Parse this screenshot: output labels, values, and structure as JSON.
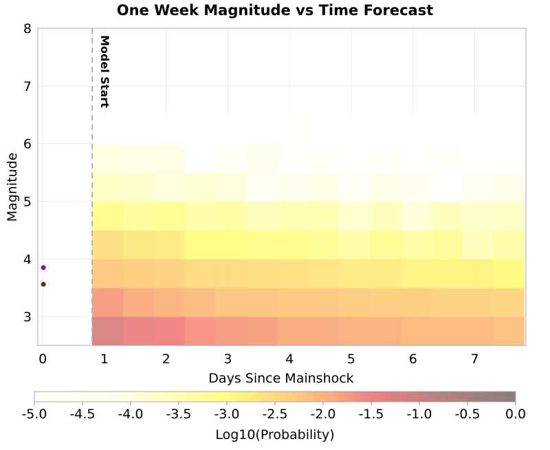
{
  "chart_data": {
    "type": "heatmap",
    "title": "One Week Magnitude vs Time Forecast",
    "xlabel": "Days Since Mainshock",
    "ylabel": "Magnitude",
    "xlim": [
      -0.08,
      7.83
    ],
    "ylim": [
      2.5,
      8
    ],
    "x_ticks": [
      "0",
      "1",
      "2",
      "3",
      "4",
      "5",
      "6",
      "7"
    ],
    "y_ticks": [
      "3",
      "4",
      "5",
      "6",
      "7",
      "8"
    ],
    "grid": true,
    "x_bin_edges": [
      0.8,
      1.3,
      1.8,
      2.3,
      2.8,
      3.3,
      3.8,
      4.3,
      4.8,
      5.3,
      5.8,
      6.3,
      6.8,
      7.3,
      7.8
    ],
    "y_bin_edges": [
      2.5,
      3.0,
      3.5,
      4.0,
      4.5,
      5.0,
      5.5,
      6.0,
      6.5
    ],
    "z": [
      [
        -1.2,
        -1.4,
        -1.5,
        -1.65,
        -1.75,
        -1.8,
        -1.9,
        -1.9,
        -1.95,
        -1.95,
        -2.05,
        -2.05,
        -2.05,
        -2.15
      ],
      [
        -1.75,
        -1.9,
        -2.0,
        -2.1,
        -2.2,
        -2.2,
        -2.25,
        -2.25,
        -2.3,
        -2.35,
        -2.35,
        -2.4,
        -2.4,
        -2.45
      ],
      [
        -2.25,
        -2.35,
        -2.4,
        -2.5,
        -2.5,
        -2.55,
        -2.6,
        -2.65,
        -2.75,
        -2.75,
        -2.85,
        -2.85,
        -2.85,
        -2.95
      ],
      [
        -2.55,
        -2.7,
        -2.75,
        -3.0,
        -3.0,
        -3.1,
        -3.1,
        -3.2,
        -3.4,
        -3.2,
        -3.35,
        -3.25,
        -3.6,
        -3.4
      ],
      [
        -3.1,
        -3.25,
        -3.2,
        -3.4,
        -3.35,
        -3.6,
        -3.5,
        -3.5,
        -3.8,
        -3.6,
        -3.9,
        -3.6,
        -3.75,
        -3.7
      ],
      [
        -3.7,
        -3.75,
        -3.95,
        -3.85,
        -3.9,
        -4.6,
        -4.4,
        -4.2,
        -4.7,
        -4.3,
        -4.4,
        -5.0,
        -4.6,
        -4.3
      ],
      [
        -4.0,
        -4.15,
        -4.1,
        -5.0,
        -4.7,
        -4.4,
        -4.9,
        -4.8,
        -5.0,
        -4.8,
        -5.0,
        -4.8,
        -5.0,
        -5.0
      ],
      [
        -5.0,
        -5.0,
        -5.0,
        -5.0,
        -5.0,
        -5.0,
        -4.85,
        -5.0,
        -5.0,
        -5.0,
        -5.0,
        -5.0,
        -5.0,
        -5.0
      ]
    ],
    "points": [
      {
        "x": 0.01,
        "y": 3.85,
        "color": "#a000a0"
      },
      {
        "x": 0.01,
        "y": 3.56,
        "color": "#5a3210"
      }
    ],
    "annotation": {
      "x": 0.8,
      "label": "Model Start"
    },
    "colorbar": {
      "label": "Log10(Probability)",
      "range": [
        -5.0,
        0.0
      ],
      "ticks": [
        "-5.0",
        "-4.5",
        "-4.0",
        "-3.5",
        "-3.0",
        "-2.5",
        "-2.0",
        "-1.5",
        "-1.0",
        "-0.5",
        "0.0"
      ],
      "stops": [
        {
          "v": -5.0,
          "color": "#ffffff"
        },
        {
          "v": -4.0,
          "color": "#fefee2"
        },
        {
          "v": -3.0,
          "color": "#fefe80"
        },
        {
          "v": -2.0,
          "color": "#fcb47c"
        },
        {
          "v": -1.5,
          "color": "#f08080"
        },
        {
          "v": -1.0,
          "color": "#c88080"
        },
        {
          "v": 0.0,
          "color": "#868080"
        }
      ],
      "placement": "bottom"
    }
  }
}
